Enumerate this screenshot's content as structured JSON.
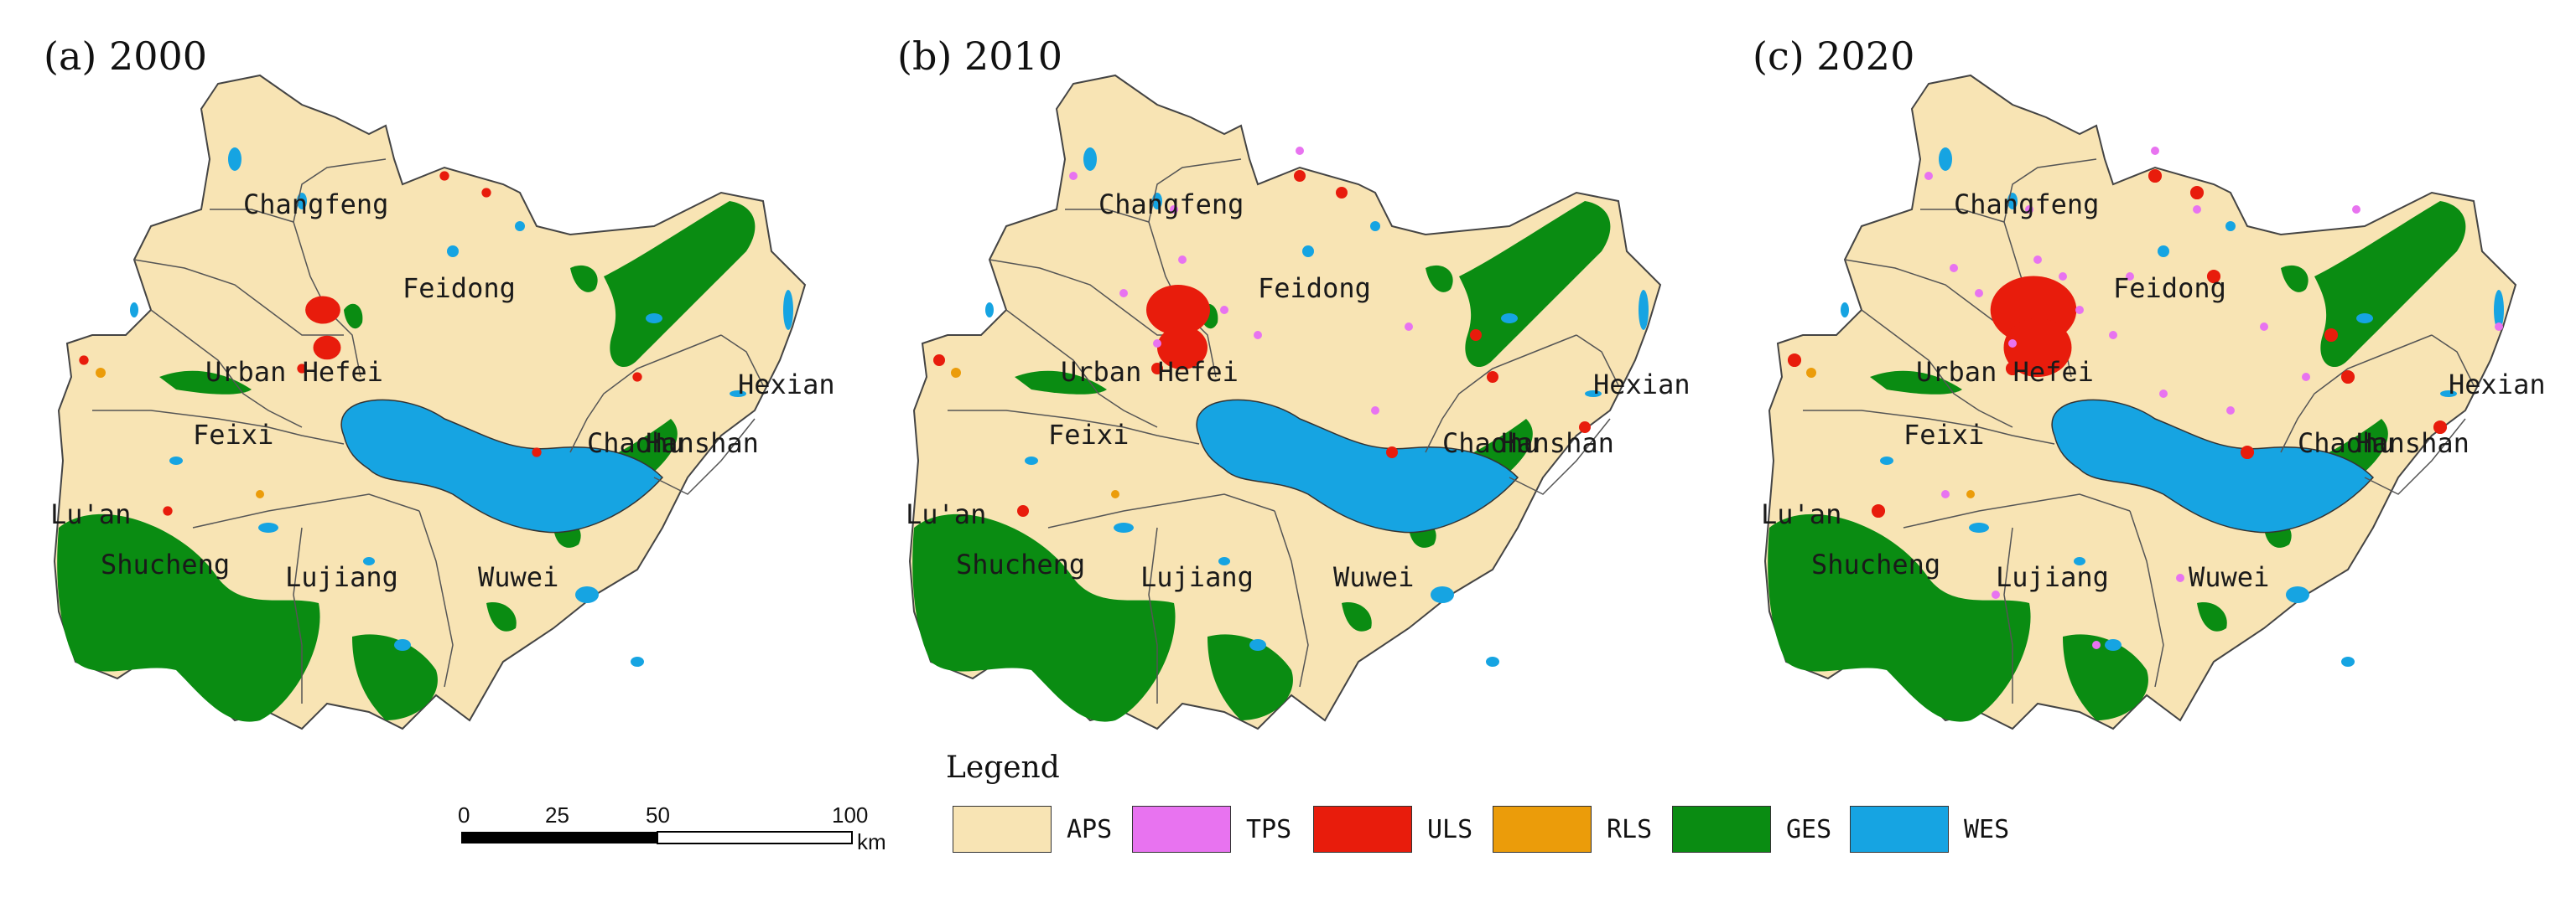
{
  "panels": [
    {
      "label": "(a)  2000",
      "urban_scale": 0.55,
      "tps": 0
    },
    {
      "label": "(b)  2010",
      "urban_scale": 1.0,
      "tps": 10
    },
    {
      "label": "(c)  2020",
      "urban_scale": 1.35,
      "tps": 22
    }
  ],
  "place_names": [
    "Changfeng",
    "Feidong",
    "Urban Hefei",
    "Feixi",
    "Chaohu",
    "Hanshan",
    "Hexian",
    "Lujiang",
    "Lu'an",
    "Shucheng",
    "Wuwei"
  ],
  "legend": {
    "title": "Legend",
    "items": [
      {
        "code": "APS",
        "color": "#f8e4b4"
      },
      {
        "code": "TPS",
        "color": "#e873f0"
      },
      {
        "code": "ULS",
        "color": "#e81c0c"
      },
      {
        "code": "RLS",
        "color": "#eb9c0a"
      },
      {
        "code": "GES",
        "color": "#0a8c12"
      },
      {
        "code": "WES",
        "color": "#16a4e2"
      }
    ]
  },
  "scale_bar": {
    "ticks": [
      "0",
      "25",
      "50",
      "100"
    ],
    "unit": "km"
  }
}
